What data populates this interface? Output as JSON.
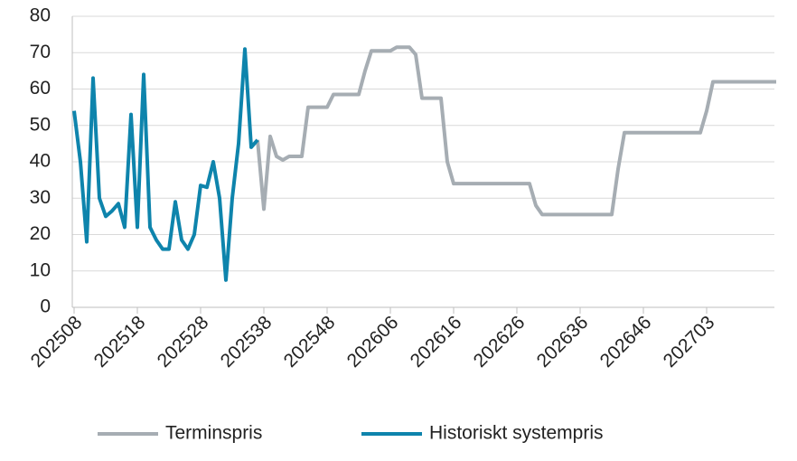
{
  "chart_data": {
    "type": "line",
    "categories": [
      "202508",
      null,
      null,
      null,
      null,
      null,
      null,
      null,
      null,
      null,
      "202518",
      null,
      null,
      null,
      null,
      null,
      null,
      null,
      null,
      null,
      "202528",
      null,
      null,
      null,
      null,
      null,
      null,
      null,
      null,
      null,
      "202538",
      null,
      null,
      null,
      null,
      null,
      null,
      null,
      null,
      null,
      "202548",
      null,
      null,
      null,
      null,
      null,
      null,
      null,
      null,
      null,
      "202606",
      null,
      null,
      null,
      null,
      null,
      null,
      null,
      null,
      null,
      "202616",
      null,
      null,
      null,
      null,
      null,
      null,
      null,
      null,
      null,
      "202626",
      null,
      null,
      null,
      null,
      null,
      null,
      null,
      null,
      null,
      "202636",
      null,
      null,
      null,
      null,
      null,
      null,
      null,
      null,
      null,
      "202646",
      null,
      null,
      null,
      null,
      null,
      null,
      null,
      null,
      null,
      "202703",
      null,
      null,
      null,
      null,
      null,
      null,
      null,
      null,
      null,
      null,
      null
    ],
    "series": [
      {
        "name": "Terminspris",
        "color": "#a6adb3",
        "values": [
          null,
          null,
          null,
          null,
          null,
          null,
          null,
          null,
          null,
          null,
          null,
          null,
          null,
          null,
          null,
          null,
          null,
          null,
          null,
          null,
          null,
          null,
          null,
          null,
          null,
          null,
          null,
          null,
          null,
          46,
          27,
          47,
          41.5,
          40.5,
          41.5,
          41.5,
          41.5,
          55,
          55,
          55,
          55,
          58.5,
          58.5,
          58.5,
          58.5,
          58.5,
          65,
          70.5,
          70.5,
          70.5,
          70.5,
          71.5,
          71.5,
          71.5,
          69.5,
          57.5,
          57.5,
          57.5,
          57.5,
          40,
          34,
          34,
          34,
          34,
          34,
          34,
          34,
          34,
          34,
          34,
          34,
          34,
          34,
          28,
          25.5,
          25.5,
          25.5,
          25.5,
          25.5,
          25.5,
          25.5,
          25.5,
          25.5,
          25.5,
          25.5,
          25.5,
          38,
          48,
          48,
          48,
          48,
          48,
          48,
          48,
          48,
          48,
          48,
          48,
          48,
          48,
          54,
          62,
          62,
          62,
          62,
          62,
          62,
          62,
          62,
          62,
          62,
          62
        ]
      },
      {
        "name": "Historiskt systempris",
        "color": "#0e84ac",
        "values": [
          54,
          40,
          18,
          63,
          30,
          25,
          26.5,
          28.5,
          22,
          53,
          22,
          64,
          22,
          18.5,
          16,
          16,
          29,
          18.5,
          16,
          20,
          33.5,
          33,
          40,
          30,
          7.5,
          30,
          45,
          71,
          44,
          46,
          null,
          null,
          null,
          null,
          null,
          null,
          null,
          null,
          null,
          null,
          null,
          null,
          null,
          null,
          null,
          null,
          null,
          null,
          null,
          null,
          null,
          null,
          null,
          null,
          null,
          null,
          null,
          null,
          null,
          null,
          null,
          null,
          null,
          null,
          null,
          null,
          null,
          null,
          null,
          null,
          null,
          null,
          null,
          null,
          null,
          null,
          null,
          null,
          null,
          null,
          null,
          null,
          null,
          null,
          null,
          null,
          null,
          null,
          null,
          null,
          null,
          null,
          null,
          null,
          null,
          null,
          null,
          null,
          null,
          null,
          null,
          null,
          null,
          null,
          null,
          null,
          null,
          null,
          null,
          null,
          null,
          null
        ]
      }
    ],
    "ylim": [
      0,
      80
    ],
    "yticks": [
      0,
      10,
      20,
      30,
      40,
      50,
      60,
      70,
      80
    ],
    "grid": true
  }
}
